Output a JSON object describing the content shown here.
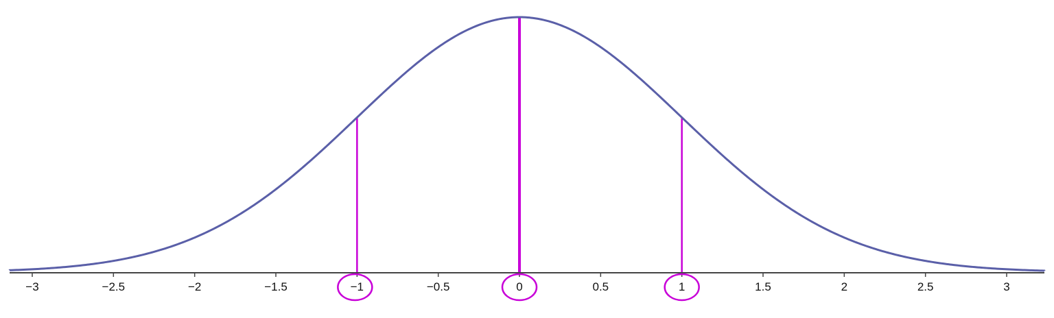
{
  "chart_data": {
    "type": "line",
    "title": "",
    "xlabel": "",
    "ylabel": "",
    "xlim": [
      -3.15,
      3.25
    ],
    "ylim": [
      0,
      0.4
    ],
    "grid": false,
    "legend": "none",
    "series": [
      {
        "function": "standard-normal-pdf",
        "mean": 0,
        "sd": 1,
        "color": "#5a5fa8"
      }
    ],
    "xticks": [
      -3,
      -2.5,
      -2,
      -1.5,
      -1,
      -0.5,
      0,
      0.5,
      1,
      1.5,
      2,
      2.5,
      3
    ],
    "xtick_labels": [
      "−3",
      "−2.5",
      "−2",
      "−1.5",
      "−1",
      "−0.5",
      "0",
      "0.5",
      "1",
      "1.5",
      "2",
      "2.5",
      "3"
    ],
    "highlight_lines": [
      {
        "x": -1,
        "color": "#c800d8"
      },
      {
        "x": 0,
        "color": "#c800d8"
      },
      {
        "x": 1,
        "color": "#c800d8"
      }
    ],
    "circled_ticks": [
      -1,
      0,
      1
    ],
    "highlight_color": "#c800d8",
    "axis_color": "#444444",
    "curve_color": "#5a5fa8"
  }
}
